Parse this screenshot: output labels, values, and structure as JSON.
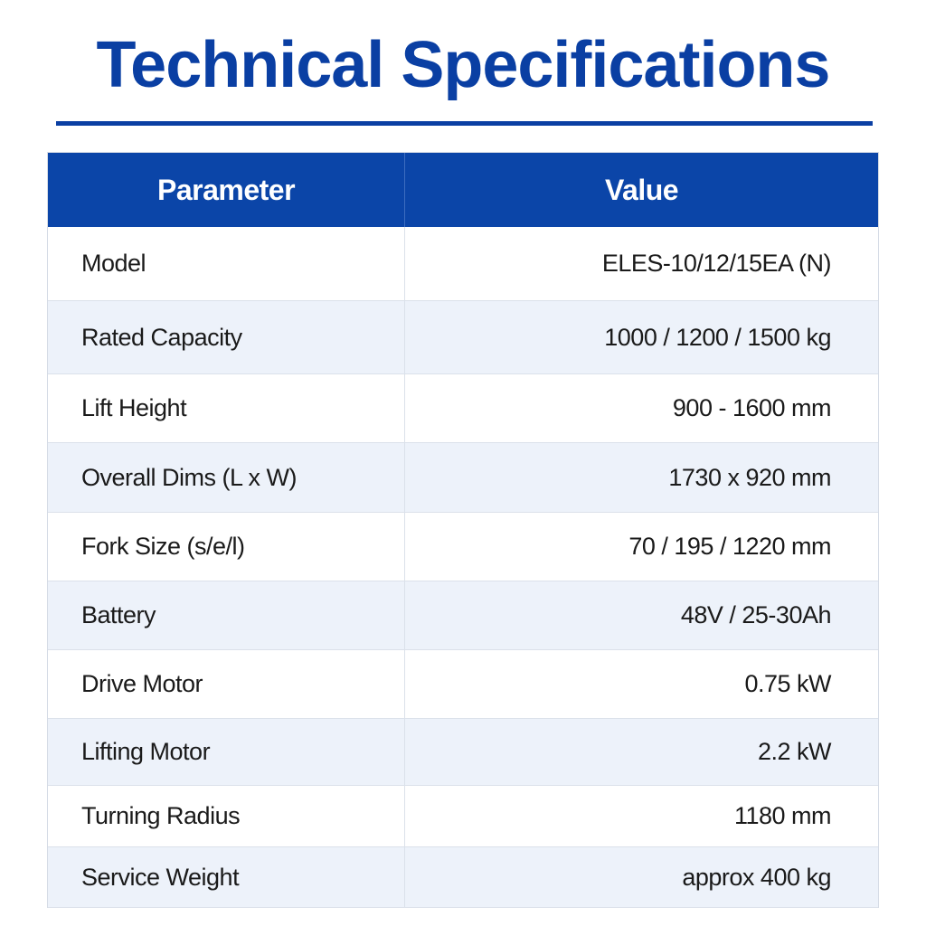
{
  "title": "Technical Specifications",
  "table": {
    "headers": [
      "Parameter",
      "Value"
    ],
    "rows": [
      [
        "Model",
        "ELES-10/12/15EA (N)"
      ],
      [
        "Rated Capacity",
        "1000 / 1200 / 1500 kg"
      ],
      [
        "Lift Height",
        "900 - 1600 mm"
      ],
      [
        "Overall Dims (L x W)",
        "1730 x 920 mm"
      ],
      [
        "Fork Size (s/e/l)",
        "70 / 195 / 1220 mm"
      ],
      [
        "Battery",
        "48V / 25-30Ah"
      ],
      [
        "Drive Motor",
        "0.75 kW"
      ],
      [
        "Lifting Motor",
        "2.2 kW"
      ],
      [
        "Turning Radius",
        "1180 mm"
      ],
      [
        "Service Weight",
        "approx 400 kg"
      ]
    ]
  }
}
